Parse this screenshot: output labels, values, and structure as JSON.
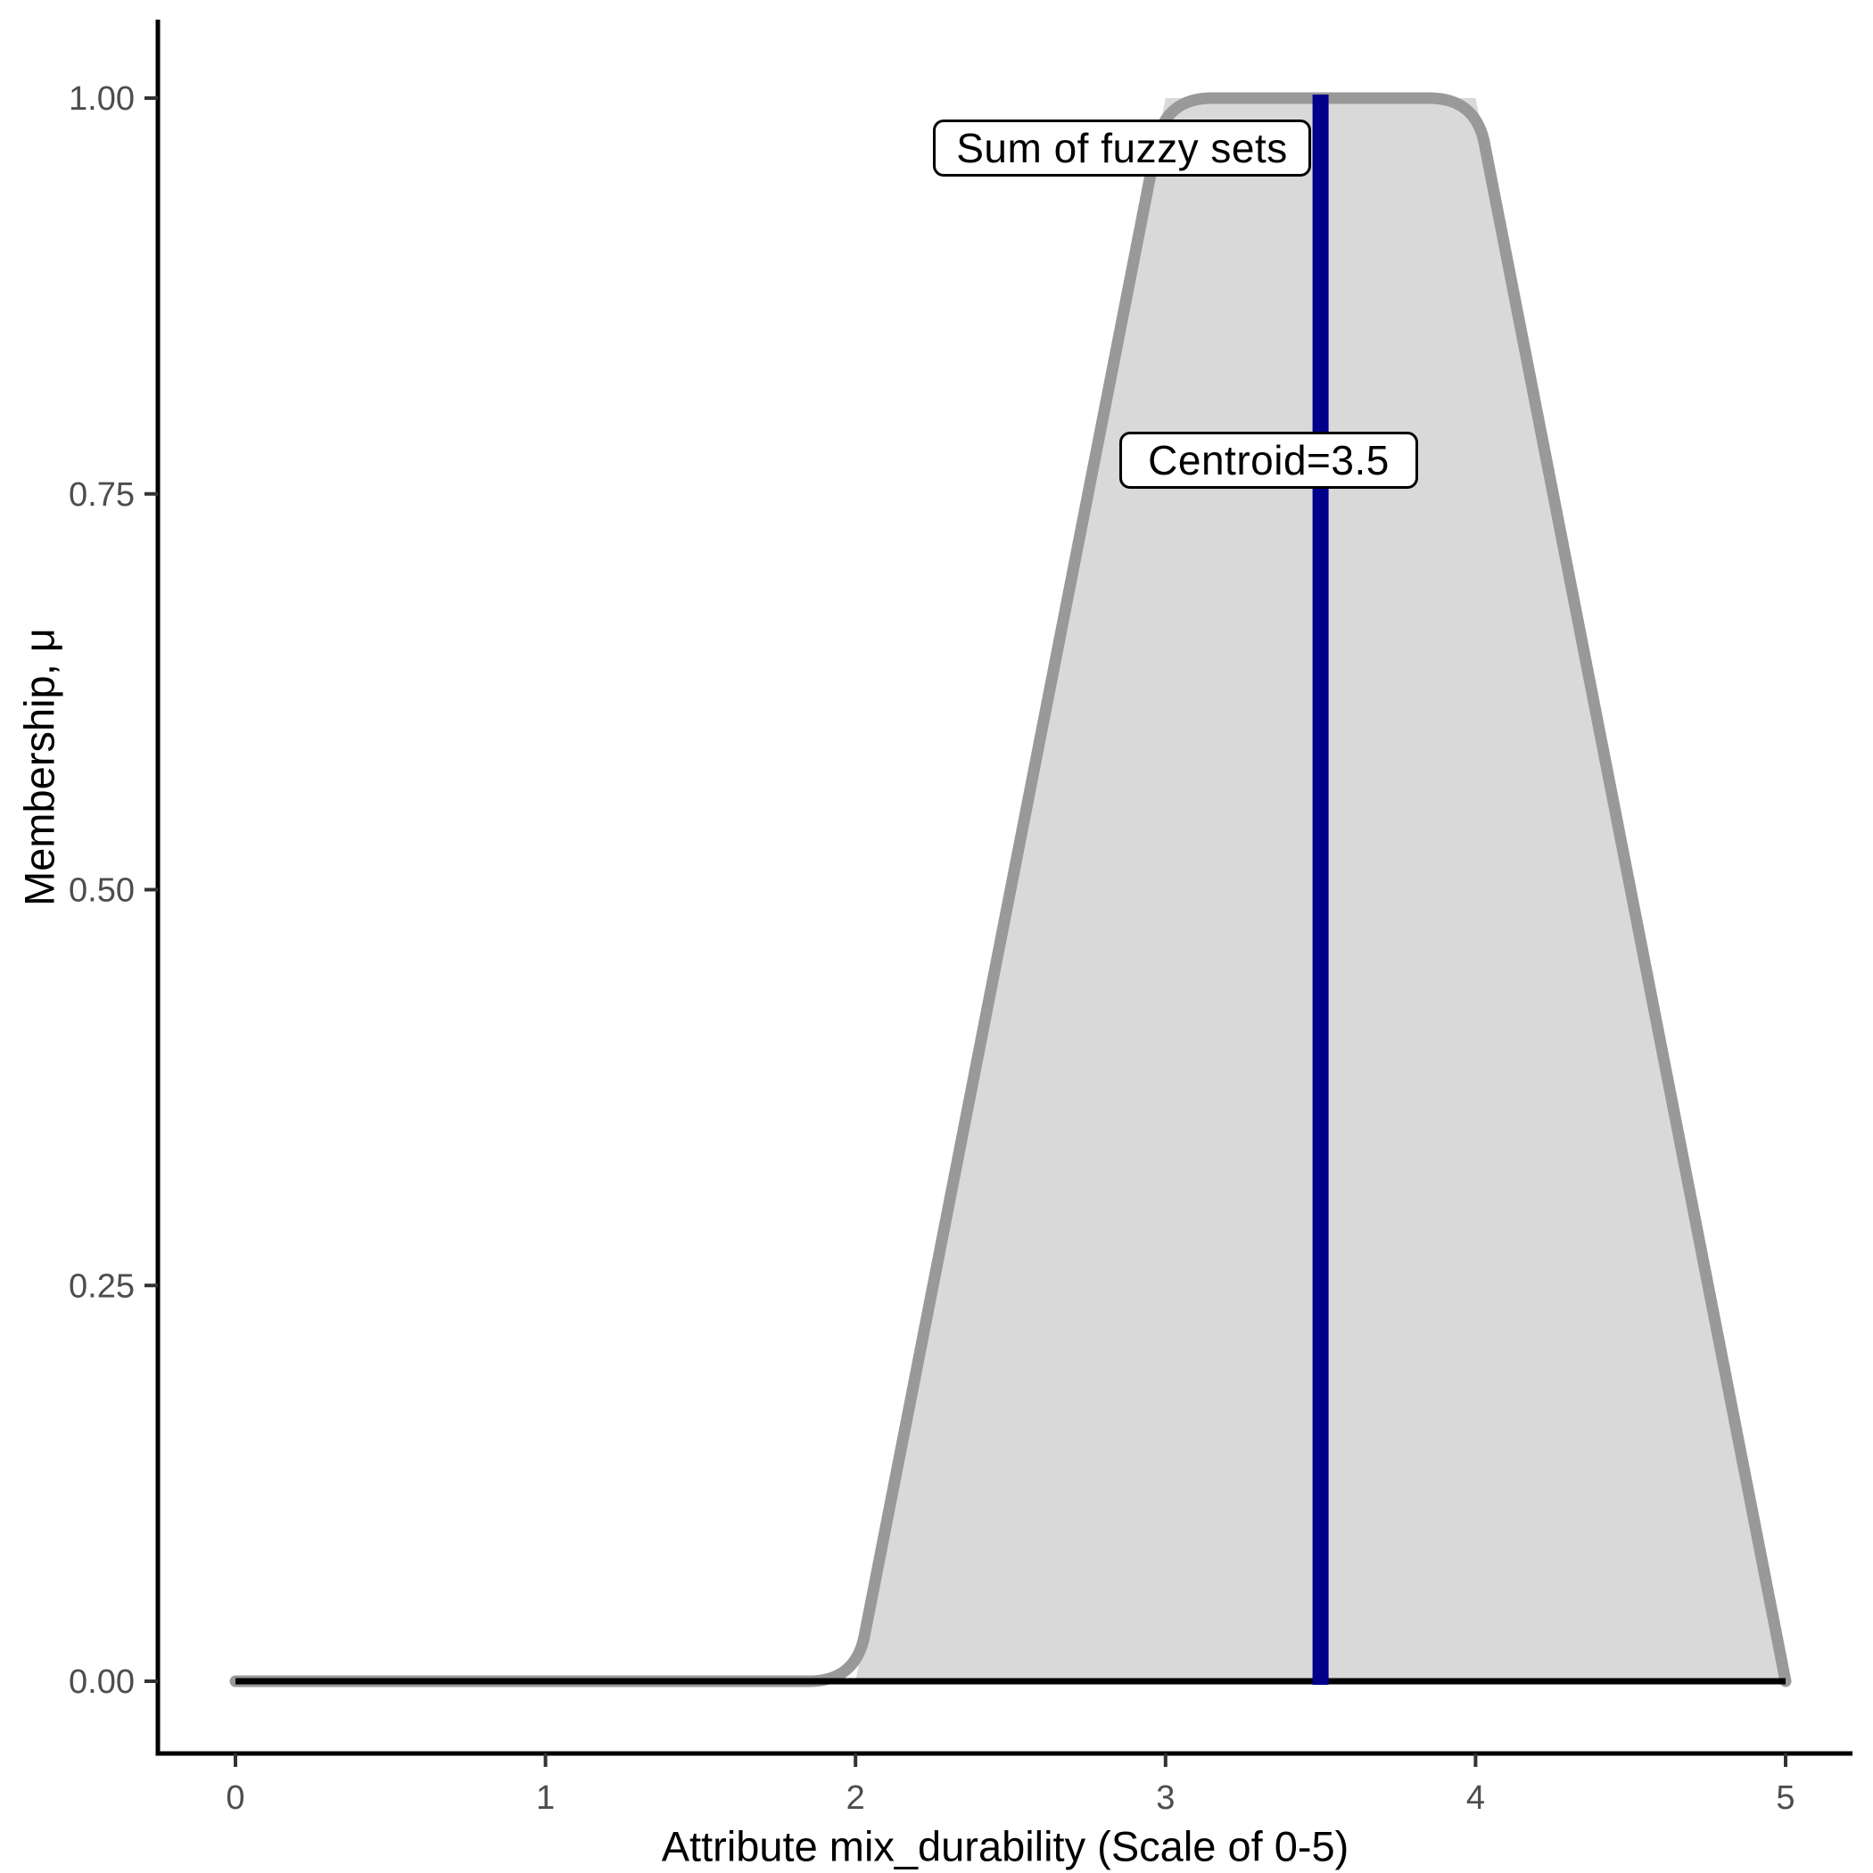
{
  "chart_data": {
    "type": "area",
    "title": "",
    "xlabel": "Attribute mix_durability (Scale of 0-5)",
    "ylabel": "Membership, μ",
    "xlim": [
      0,
      5
    ],
    "ylim": [
      0,
      1
    ],
    "grid": false,
    "legend": false,
    "x_ticks": [
      "0",
      "1",
      "2",
      "3",
      "4",
      "5"
    ],
    "y_ticks": [
      "0.00",
      "0.25",
      "0.50",
      "0.75",
      "1.00"
    ],
    "series": [
      {
        "name": "Sum of fuzzy sets",
        "x": [
          0,
          2,
          3,
          4,
          5
        ],
        "y": [
          0,
          0,
          1,
          1,
          0
        ],
        "fill": "#D9D9D9",
        "stroke": "#999999",
        "stroke_width": 13
      }
    ],
    "baseline": {
      "x": [
        0,
        5
      ],
      "y": 0,
      "color": "#000000",
      "width": 7
    },
    "centroid": {
      "value": 3.5,
      "color": "#00008B",
      "width": 18
    },
    "annotations": [
      {
        "text": "Sum of fuzzy sets"
      },
      {
        "text": "Centroid=3.5"
      }
    ]
  },
  "colors": {
    "background": "#FFFFFF",
    "axis_line": "#000000",
    "tick_mark": "#333333",
    "tick_label": "#4D4D4D",
    "area_fill": "#D9D9D9",
    "area_outline": "#999999",
    "centroid_line": "#00008B",
    "annotation_border": "#000000",
    "annotation_bg": "#FFFFFF"
  }
}
